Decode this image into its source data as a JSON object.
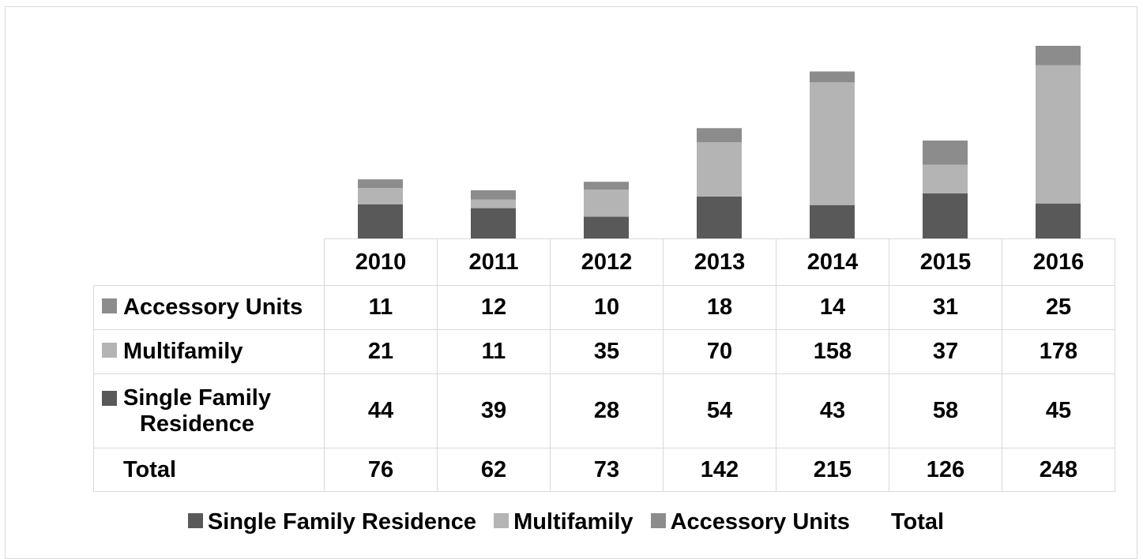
{
  "chart_data": {
    "type": "bar",
    "stacked": true,
    "categories": [
      "2010",
      "2011",
      "2012",
      "2013",
      "2014",
      "2015",
      "2016"
    ],
    "series": [
      {
        "name": "Single Family Residence",
        "values": [
          44,
          39,
          28,
          54,
          43,
          58,
          45
        ],
        "color": "#595959"
      },
      {
        "name": "Multifamily",
        "values": [
          21,
          11,
          35,
          70,
          158,
          37,
          178
        ],
        "color": "#b4b4b4"
      },
      {
        "name": "Accessory Units",
        "values": [
          11,
          12,
          10,
          18,
          14,
          31,
          25
        ],
        "color": "#8c8c8c"
      }
    ],
    "totals": {
      "name": "Total",
      "values": [
        76,
        62,
        73,
        142,
        215,
        126,
        248
      ]
    },
    "data_table": true,
    "legend_position": "bottom",
    "grid": false
  },
  "table": {
    "rows": [
      {
        "label": "Accessory Units",
        "series_index": 2
      },
      {
        "label": "Multifamily",
        "series_index": 1
      },
      {
        "label_line1": "Single Family",
        "label_line2": "Residence",
        "series_index": 0
      },
      {
        "label": "Total"
      }
    ]
  },
  "legend": {
    "items": [
      "Single Family Residence",
      "Multifamily",
      "Accessory Units",
      "Total"
    ]
  }
}
